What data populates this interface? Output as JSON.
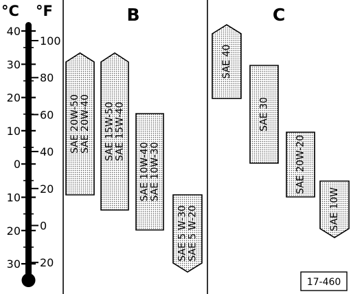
{
  "thermometer": {
    "celsius_unit": "°C",
    "fahrenheit_unit": "°F",
    "celsius_ticks": [
      "40",
      "30",
      "20",
      "10",
      "0",
      "10",
      "20",
      "30"
    ],
    "fahrenheit_ticks": [
      "100",
      "80",
      "60",
      "40",
      "20",
      "0",
      "20"
    ]
  },
  "section_b": {
    "heading": "B",
    "grades": [
      {
        "lines": [
          "SAE 20W-50",
          "SAE 20W-40"
        ],
        "top_cap": "pointed",
        "bottom_cap": "flat"
      },
      {
        "lines": [
          "SAE 15W-50",
          "SAE 15W-40"
        ],
        "top_cap": "pointed",
        "bottom_cap": "flat"
      },
      {
        "lines": [
          "SAE 10W-40",
          "SAE 10W-30"
        ],
        "top_cap": "flat",
        "bottom_cap": "flat"
      },
      {
        "lines": [
          "SAE 5 W-30",
          "SAE 5 W-20"
        ],
        "top_cap": "flat",
        "bottom_cap": "pointed"
      }
    ]
  },
  "section_c": {
    "heading": "C",
    "grades": [
      {
        "lines": [
          "SAE 40"
        ],
        "top_cap": "pointed",
        "bottom_cap": "flat"
      },
      {
        "lines": [
          "SAE 30"
        ],
        "top_cap": "flat",
        "bottom_cap": "flat"
      },
      {
        "lines": [
          "SAE 20W-20"
        ],
        "top_cap": "flat",
        "bottom_cap": "flat"
      },
      {
        "lines": [
          "SAE 10W"
        ],
        "top_cap": "flat",
        "bottom_cap": "pointed"
      }
    ]
  },
  "figure_number": "17-460"
}
